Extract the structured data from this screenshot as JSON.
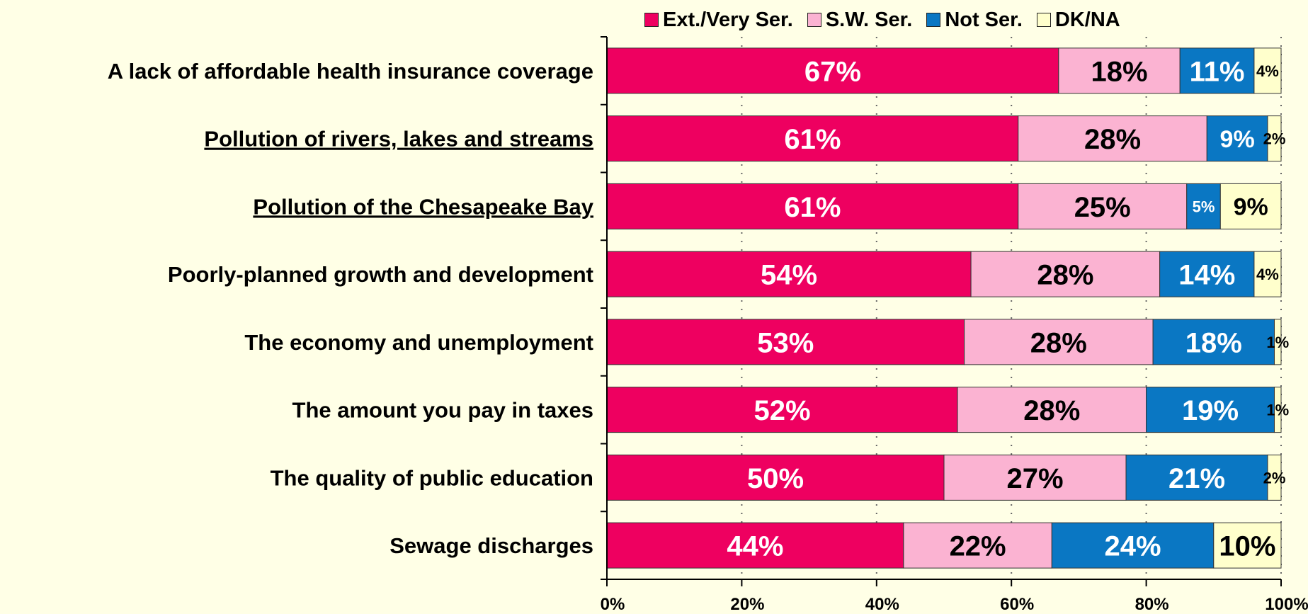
{
  "chart_data": {
    "type": "bar",
    "orientation": "horizontal",
    "stacked": true,
    "title": "",
    "xlabel": "",
    "ylabel": "",
    "xlim": [
      0,
      100
    ],
    "x_ticks": [
      "0%",
      "20%",
      "40%",
      "60%",
      "80%",
      "100%"
    ],
    "grid": true,
    "legend_position": "top",
    "categories": [
      "A lack of affordable health insurance coverage",
      "Pollution of rivers, lakes and streams",
      "Pollution of the Chesapeake Bay",
      "Poorly-planned growth and development",
      "The economy and unemployment",
      "The amount you pay in taxes",
      "The quality of public education",
      "Sewage discharges"
    ],
    "underlined_categories": [
      "Pollution of rivers, lakes and streams",
      "Pollution of the Chesapeake Bay"
    ],
    "series": [
      {
        "name": "Ext./Very Ser.",
        "color": "#EE0060",
        "label_color": "#FFFFFF",
        "values": [
          67,
          61,
          61,
          54,
          53,
          52,
          50,
          44
        ]
      },
      {
        "name": "S.W. Ser.",
        "color": "#FBB3D2",
        "label_color": "#000000",
        "values": [
          18,
          28,
          25,
          28,
          28,
          28,
          27,
          22
        ]
      },
      {
        "name": "Not Ser.",
        "color": "#0A77C3",
        "label_color": "#FFFFFF",
        "values": [
          11,
          9,
          5,
          14,
          18,
          19,
          21,
          24
        ]
      },
      {
        "name": "DK/NA",
        "color": "#FFFFCC",
        "label_color": "#000000",
        "values": [
          4,
          2,
          9,
          4,
          1,
          1,
          2,
          10
        ]
      }
    ],
    "value_suffix": "%"
  }
}
